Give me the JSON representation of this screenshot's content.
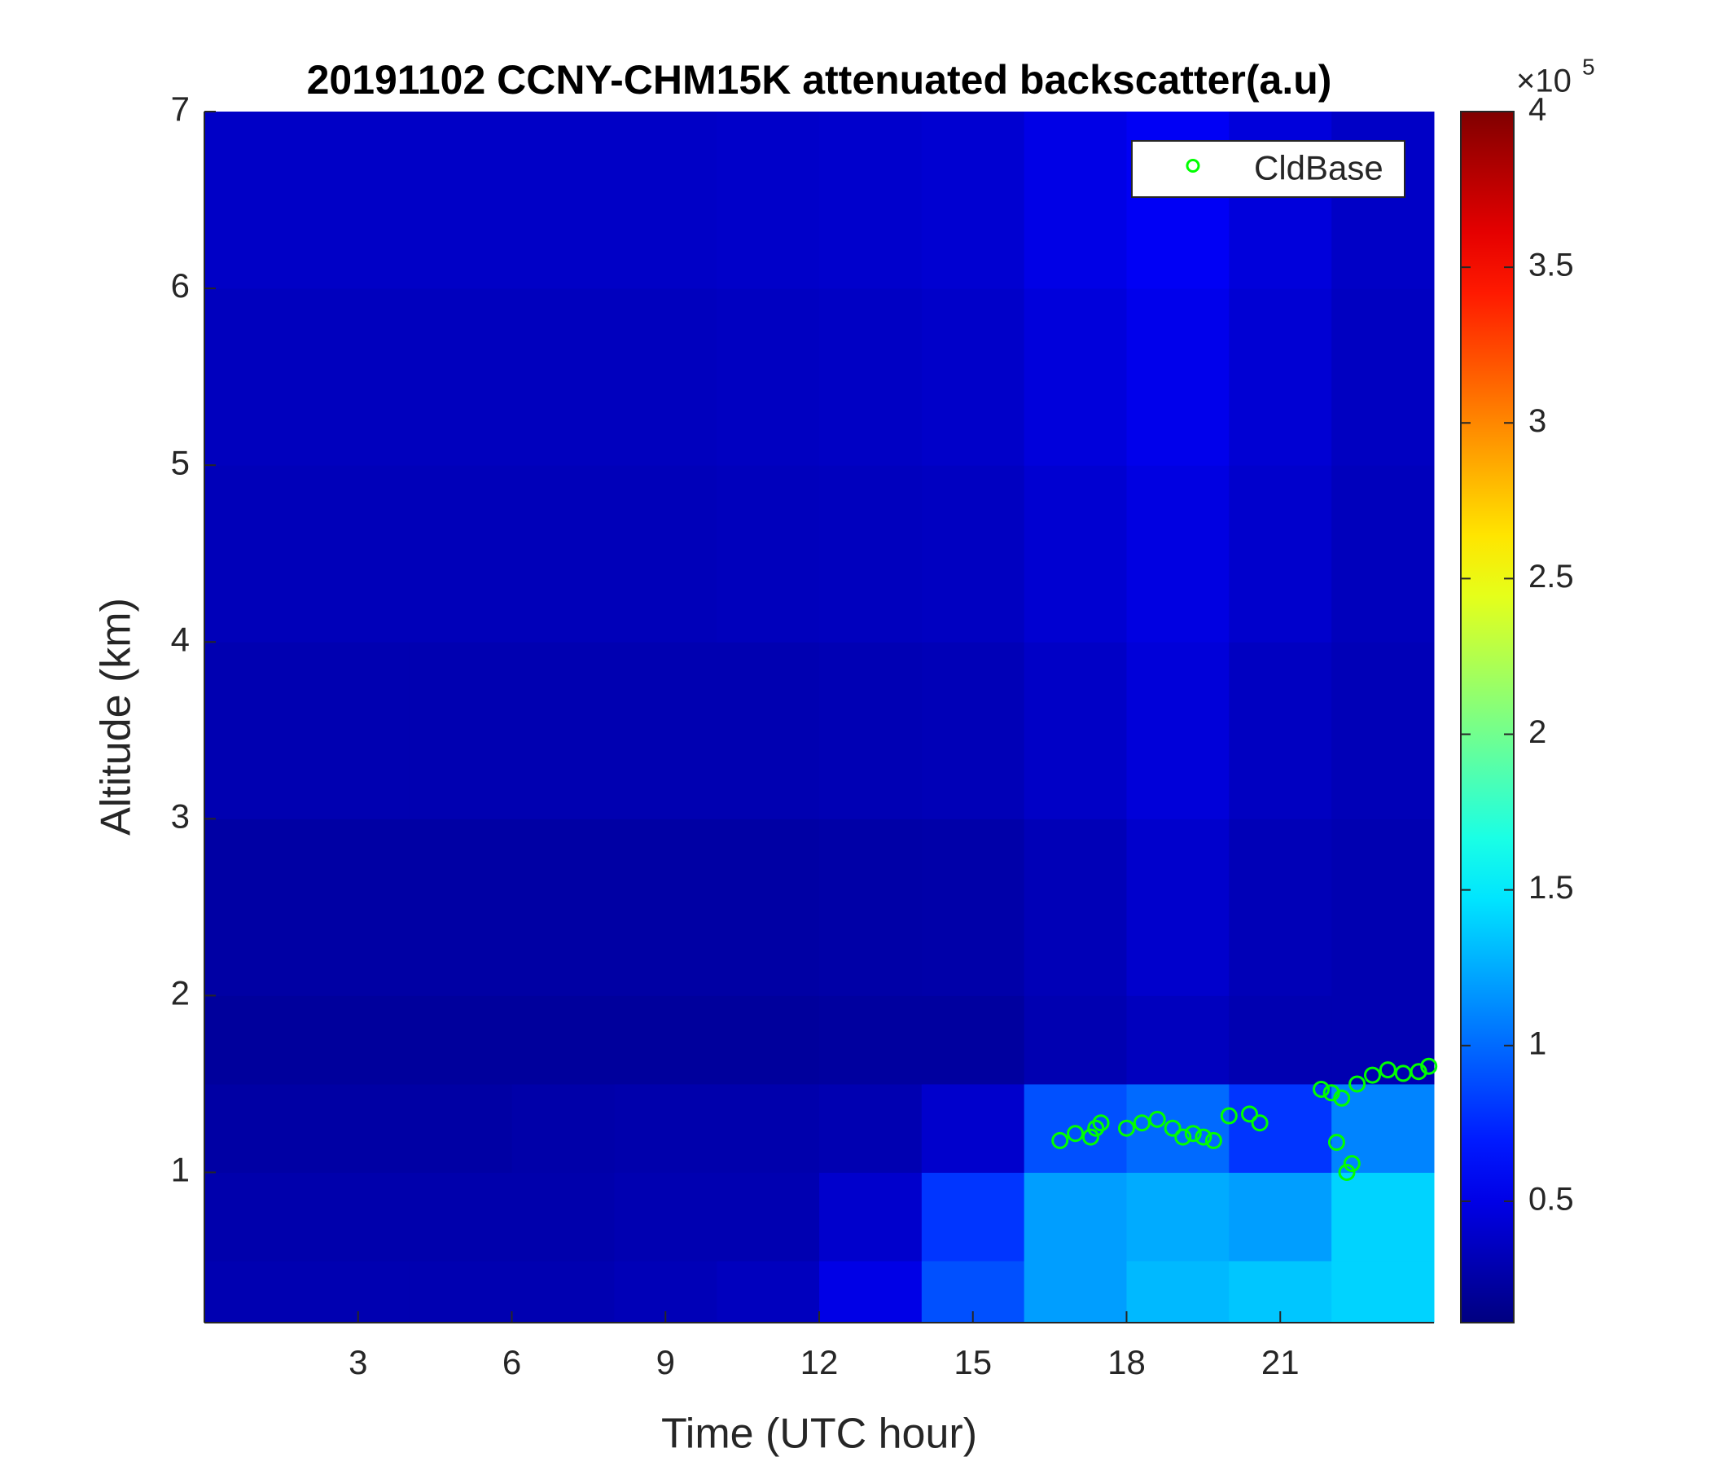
{
  "chart_data": {
    "type": "heatmap",
    "title": "20191102 CCNY-CHM15K attenuated backscatter(a.u)",
    "xlabel": "Time (UTC hour)",
    "ylabel": "Altitude (km)",
    "xlim": [
      0,
      24
    ],
    "xticks": [
      3,
      6,
      9,
      12,
      15,
      18,
      21
    ],
    "ylim": [
      0.15,
      7
    ],
    "yticks": [
      1,
      2,
      3,
      4,
      5,
      6,
      7
    ],
    "colormap": "jet",
    "clim": [
      0.11,
      4
    ],
    "cticks": [
      0.5,
      1,
      1.5,
      2,
      2.5,
      3,
      3.5,
      4
    ],
    "colorbar_multiplier": "×10",
    "colorbar_exponent": "5",
    "x_edges": [
      0,
      2,
      4,
      6,
      8,
      10,
      12,
      14,
      16,
      18,
      20,
      22,
      24
    ],
    "y_edges": [
      0.15,
      0.5,
      1,
      1.5,
      2,
      3,
      4,
      5,
      6,
      7
    ],
    "z": [
      [
        0.3,
        0.3,
        0.3,
        0.3,
        0.32,
        0.35,
        0.5,
        0.9,
        1.2,
        1.3,
        1.35,
        1.4
      ],
      [
        0.28,
        0.28,
        0.28,
        0.28,
        0.3,
        0.3,
        0.4,
        0.8,
        1.2,
        1.25,
        1.2,
        1.4
      ],
      [
        0.25,
        0.25,
        0.25,
        0.27,
        0.28,
        0.28,
        0.3,
        0.4,
        0.9,
        1.0,
        0.8,
        1.1
      ],
      [
        0.22,
        0.22,
        0.22,
        0.22,
        0.22,
        0.22,
        0.23,
        0.23,
        0.3,
        0.35,
        0.3,
        0.3
      ],
      [
        0.25,
        0.25,
        0.25,
        0.25,
        0.25,
        0.25,
        0.26,
        0.27,
        0.32,
        0.4,
        0.32,
        0.3
      ],
      [
        0.3,
        0.3,
        0.3,
        0.3,
        0.3,
        0.3,
        0.31,
        0.32,
        0.38,
        0.45,
        0.36,
        0.32
      ],
      [
        0.33,
        0.33,
        0.33,
        0.33,
        0.33,
        0.34,
        0.35,
        0.36,
        0.42,
        0.48,
        0.4,
        0.34
      ],
      [
        0.35,
        0.35,
        0.35,
        0.35,
        0.35,
        0.36,
        0.37,
        0.39,
        0.46,
        0.52,
        0.43,
        0.36
      ],
      [
        0.38,
        0.38,
        0.38,
        0.38,
        0.38,
        0.39,
        0.4,
        0.42,
        0.5,
        0.56,
        0.46,
        0.38
      ]
    ],
    "series": [
      {
        "name": "CldBase",
        "type": "scatter",
        "color": "#00ff00",
        "x": [
          16.7,
          17.0,
          17.3,
          17.4,
          17.5,
          18.0,
          18.3,
          18.6,
          18.9,
          19.1,
          19.3,
          19.5,
          19.7,
          20.0,
          20.4,
          20.6,
          21.8,
          22.0,
          22.2,
          22.1,
          22.3,
          22.4,
          22.5,
          22.8,
          23.1,
          23.4,
          23.7,
          23.9
        ],
        "values": [
          1.18,
          1.22,
          1.2,
          1.25,
          1.28,
          1.25,
          1.28,
          1.3,
          1.25,
          1.2,
          1.22,
          1.2,
          1.18,
          1.32,
          1.33,
          1.28,
          1.47,
          1.45,
          1.42,
          1.17,
          1.0,
          1.05,
          1.5,
          1.55,
          1.58,
          1.56,
          1.57,
          1.6
        ]
      }
    ],
    "legend": "upper right"
  }
}
